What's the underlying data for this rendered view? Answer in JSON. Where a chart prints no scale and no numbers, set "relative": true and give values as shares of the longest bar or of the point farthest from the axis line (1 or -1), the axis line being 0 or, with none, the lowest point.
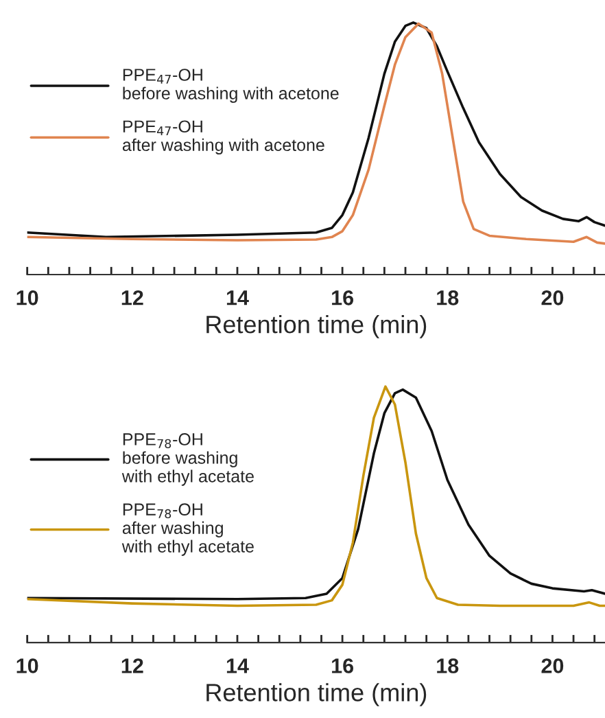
{
  "chart_data": [
    {
      "type": "line",
      "relative": true,
      "xlabel": "Retention time (min)",
      "xlim": [
        10,
        21
      ],
      "xticks": [
        10,
        {
          "value": 10.4,
          "label": null
        },
        {
          "value": 10.8,
          "label": null
        },
        {
          "value": 11.2,
          "label": null
        },
        {
          "value": 11.6,
          "label": null
        },
        12,
        {
          "value": 12.4,
          "label": null
        },
        {
          "value": 12.8,
          "label": null
        },
        {
          "value": 13.2,
          "label": null
        },
        {
          "value": 13.6,
          "label": null
        },
        14,
        {
          "value": 14.4,
          "label": null
        },
        {
          "value": 14.8,
          "label": null
        },
        {
          "value": 15.2,
          "label": null
        },
        {
          "value": 15.6,
          "label": null
        },
        16,
        {
          "value": 16.4,
          "label": null
        },
        {
          "value": 16.8,
          "label": null
        },
        {
          "value": 17.2,
          "label": null
        },
        {
          "value": 17.6,
          "label": null
        },
        18,
        {
          "value": 18.4,
          "label": null
        },
        {
          "value": 18.8,
          "label": null
        },
        {
          "value": 19.2,
          "label": null
        },
        {
          "value": 19.6,
          "label": null
        },
        20,
        {
          "value": 20.4,
          "label": null
        },
        {
          "value": 20.8,
          "label": null
        }
      ],
      "grid": false,
      "legend": "top left",
      "line_style": "solid",
      "marker": "none",
      "series": [
        {
          "name": "PPE$_{47}$-OH\nbefore washing with acetone",
          "color": "#111111",
          "x": [
            10,
            11.5,
            14,
            15.5,
            15.8,
            16.0,
            16.2,
            16.5,
            16.8,
            17.0,
            17.2,
            17.35,
            17.6,
            17.8,
            18.0,
            18.3,
            18.6,
            19.0,
            19.4,
            19.8,
            20.2,
            20.5,
            20.65,
            20.8,
            21.0
          ],
          "values": [
            0.167,
            0.149,
            0.158,
            0.167,
            0.185,
            0.236,
            0.326,
            0.543,
            0.797,
            0.924,
            0.987,
            1.0,
            0.978,
            0.906,
            0.806,
            0.661,
            0.525,
            0.399,
            0.308,
            0.254,
            0.221,
            0.212,
            0.228,
            0.208,
            0.194
          ]
        },
        {
          "name": "PPE$_{47}$-OH\nafter washing with acetone",
          "color": "#e0844f",
          "x": [
            10,
            12,
            14,
            15.5,
            15.8,
            16.0,
            16.2,
            16.5,
            16.8,
            17.0,
            17.2,
            17.45,
            17.7,
            17.9,
            18.1,
            18.3,
            18.5,
            18.8,
            19.5,
            20.4,
            20.65,
            20.85,
            21.0
          ],
          "values": [
            0.149,
            0.141,
            0.136,
            0.139,
            0.149,
            0.172,
            0.236,
            0.417,
            0.67,
            0.833,
            0.942,
            0.996,
            0.96,
            0.797,
            0.543,
            0.29,
            0.181,
            0.154,
            0.141,
            0.13,
            0.149,
            0.127,
            0.123
          ]
        }
      ]
    },
    {
      "type": "line",
      "relative": true,
      "xlabel": "Retention time (min)",
      "xlim": [
        10,
        21
      ],
      "xticks": [
        10,
        {
          "value": 10.4,
          "label": null
        },
        {
          "value": 10.8,
          "label": null
        },
        {
          "value": 11.2,
          "label": null
        },
        {
          "value": 11.6,
          "label": null
        },
        12,
        {
          "value": 12.4,
          "label": null
        },
        {
          "value": 12.8,
          "label": null
        },
        {
          "value": 13.2,
          "label": null
        },
        {
          "value": 13.6,
          "label": null
        },
        14,
        {
          "value": 14.4,
          "label": null
        },
        {
          "value": 14.8,
          "label": null
        },
        {
          "value": 15.2,
          "label": null
        },
        {
          "value": 15.6,
          "label": null
        },
        16,
        {
          "value": 16.4,
          "label": null
        },
        {
          "value": 16.8,
          "label": null
        },
        {
          "value": 17.2,
          "label": null
        },
        {
          "value": 17.6,
          "label": null
        },
        18,
        {
          "value": 18.4,
          "label": null
        },
        {
          "value": 18.8,
          "label": null
        },
        {
          "value": 19.2,
          "label": null
        },
        {
          "value": 19.6,
          "label": null
        },
        20,
        {
          "value": 20.4,
          "label": null
        },
        {
          "value": 20.8,
          "label": null
        }
      ],
      "grid": false,
      "legend": "top left",
      "line_style": "solid",
      "marker": "none",
      "series": [
        {
          "name": "PPE$_{78}$-OH\nbefore washing\nwith ethyl acetate",
          "color": "#111111",
          "x": [
            10,
            14,
            15.3,
            15.7,
            16.0,
            16.3,
            16.6,
            16.8,
            17.0,
            17.15,
            17.4,
            17.7,
            18.0,
            18.4,
            18.8,
            19.2,
            19.6,
            20.0,
            20.6,
            20.75,
            21.0
          ],
          "values": [
            0.174,
            0.17,
            0.174,
            0.191,
            0.252,
            0.443,
            0.739,
            0.896,
            0.974,
            0.988,
            0.957,
            0.826,
            0.635,
            0.461,
            0.339,
            0.27,
            0.23,
            0.212,
            0.2,
            0.205,
            0.191
          ]
        },
        {
          "name": "PPE$_{78}$-OH\nafter washing\nwith ethyl acetate",
          "color": "#c9960f",
          "x": [
            10,
            12,
            14,
            15.5,
            15.8,
            16.0,
            16.2,
            16.4,
            16.6,
            16.82,
            17.0,
            17.2,
            17.4,
            17.6,
            17.8,
            18.2,
            19.0,
            20.4,
            20.7,
            20.9,
            21.0
          ],
          "values": [
            0.17,
            0.153,
            0.144,
            0.148,
            0.165,
            0.226,
            0.391,
            0.652,
            0.878,
            1.0,
            0.93,
            0.704,
            0.426,
            0.252,
            0.174,
            0.148,
            0.144,
            0.144,
            0.157,
            0.144,
            0.144
          ]
        }
      ]
    }
  ]
}
